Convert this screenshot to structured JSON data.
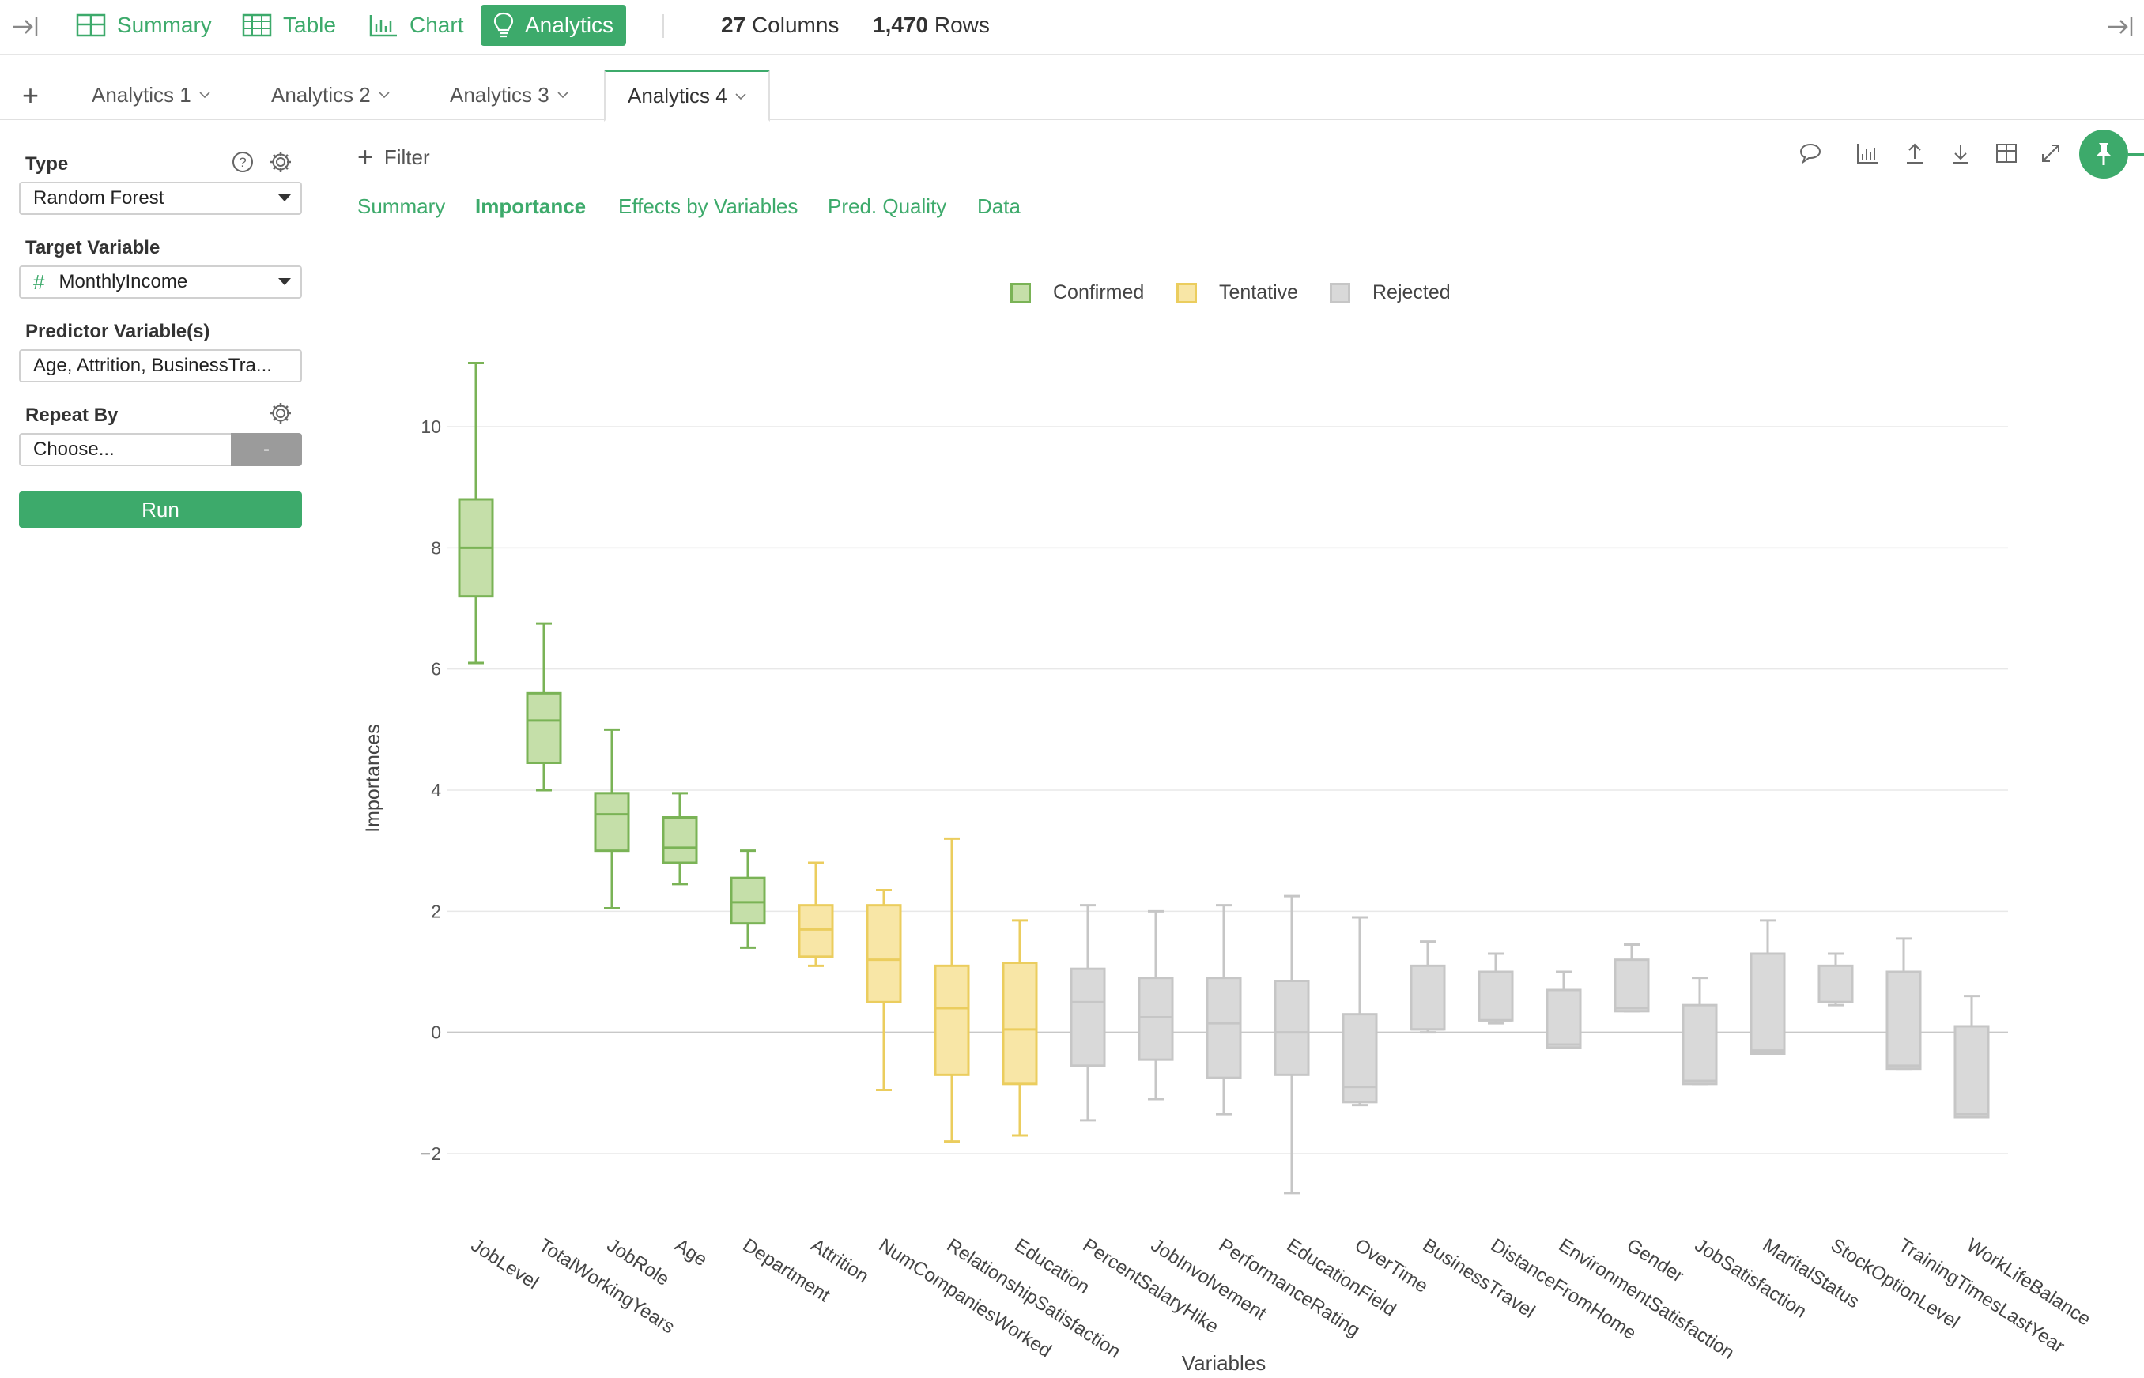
{
  "toolbar": {
    "nav": [
      {
        "label": "Summary",
        "icon": "summary-table-icon"
      },
      {
        "label": "Table",
        "icon": "table-icon"
      },
      {
        "label": "Chart",
        "icon": "bar-chart-icon"
      },
      {
        "label": "Analytics",
        "icon": "lightbulb-icon",
        "active": true
      }
    ],
    "columns_count": "27",
    "columns_label": "Columns",
    "rows_count": "1,470",
    "rows_label": "Rows"
  },
  "tabs": {
    "add_label": "+",
    "items": [
      {
        "label": "Analytics 1"
      },
      {
        "label": "Analytics 2"
      },
      {
        "label": "Analytics 3"
      },
      {
        "label": "Analytics 4",
        "active": true
      }
    ]
  },
  "panel": {
    "type_label": "Type",
    "type_value": "Random Forest",
    "target_label": "Target Variable",
    "target_hash": "#",
    "target_value": "MonthlyIncome",
    "predictor_label": "Predictor Variable(s)",
    "predictor_value": "Age, Attrition, BusinessTra...",
    "repeat_label": "Repeat By",
    "repeat_placeholder": "Choose...",
    "repeat_dash": "-",
    "run_label": "Run"
  },
  "main": {
    "filter_label": "Filter",
    "subtabs": [
      {
        "label": "Summary"
      },
      {
        "label": "Importance",
        "active": true
      },
      {
        "label": "Effects by Variables"
      },
      {
        "label": "Pred. Quality"
      },
      {
        "label": "Data"
      }
    ],
    "tools": [
      "comment-icon",
      "chart-type-icon",
      "upload-icon",
      "download-icon",
      "grid-icon",
      "expand-icon"
    ]
  },
  "colors": {
    "accent": "#3daa6b",
    "confirmed_fill": "#c5dfa9",
    "confirmed_stroke": "#7ab356",
    "tentative_fill": "#f8e6a6",
    "tentative_stroke": "#ebcd5e",
    "rejected_fill": "#d9d9d9",
    "rejected_stroke": "#c6c6c6"
  },
  "chart_data": {
    "type": "box",
    "xlabel": "Variables",
    "ylabel": "Importances",
    "ylim": [
      -3,
      11.5
    ],
    "yticks": [
      -2,
      0,
      2,
      4,
      6,
      8,
      10
    ],
    "legend": [
      "Confirmed",
      "Tentative",
      "Rejected"
    ],
    "legend_position": "top-center",
    "grid": true,
    "boxes": [
      {
        "name": "JobLevel",
        "group": "Confirmed",
        "min": 6.1,
        "q1": 7.2,
        "median": 8.0,
        "q3": 8.8,
        "max": 11.05
      },
      {
        "name": "TotalWorkingYears",
        "group": "Confirmed",
        "min": 4.0,
        "q1": 4.45,
        "median": 5.15,
        "q3": 5.6,
        "max": 6.75
      },
      {
        "name": "JobRole",
        "group": "Confirmed",
        "min": 2.05,
        "q1": 3.0,
        "median": 3.6,
        "q3": 3.95,
        "max": 5.0
      },
      {
        "name": "Age",
        "group": "Confirmed",
        "min": 2.45,
        "q1": 2.8,
        "median": 3.05,
        "q3": 3.55,
        "max": 3.95
      },
      {
        "name": "Department",
        "group": "Confirmed",
        "min": 1.4,
        "q1": 1.8,
        "median": 2.15,
        "q3": 2.55,
        "max": 3.0
      },
      {
        "name": "Attrition",
        "group": "Tentative",
        "min": 1.1,
        "q1": 1.25,
        "median": 1.7,
        "q3": 2.1,
        "max": 2.8
      },
      {
        "name": "NumCompaniesWorked",
        "group": "Tentative",
        "min": -0.95,
        "q1": 0.5,
        "median": 1.2,
        "q3": 2.1,
        "max": 2.35
      },
      {
        "name": "RelationshipSatisfaction",
        "group": "Tentative",
        "min": -1.8,
        "q1": -0.7,
        "median": 0.4,
        "q3": 1.1,
        "max": 3.2
      },
      {
        "name": "Education",
        "group": "Tentative",
        "min": -1.7,
        "q1": -0.85,
        "median": 0.05,
        "q3": 1.15,
        "max": 1.85
      },
      {
        "name": "PercentSalaryHike",
        "group": "Rejected",
        "min": -1.45,
        "q1": -0.55,
        "median": 0.5,
        "q3": 1.05,
        "max": 2.1
      },
      {
        "name": "JobInvolvement",
        "group": "Rejected",
        "min": -1.1,
        "q1": -0.45,
        "median": 0.25,
        "q3": 0.9,
        "max": 2.0
      },
      {
        "name": "PerformanceRating",
        "group": "Rejected",
        "min": -1.35,
        "q1": -0.75,
        "median": 0.15,
        "q3": 0.9,
        "max": 2.1
      },
      {
        "name": "EducationField",
        "group": "Rejected",
        "min": -2.65,
        "q1": -0.7,
        "median": 0.0,
        "q3": 0.85,
        "max": 2.25
      },
      {
        "name": "OverTime",
        "group": "Rejected",
        "min": -1.2,
        "q1": -1.15,
        "median": -0.9,
        "q3": 0.3,
        "max": 1.9
      },
      {
        "name": "BusinessTravel",
        "group": "Rejected",
        "min": 0.0,
        "q1": 0.05,
        "median": 0.05,
        "q3": 1.1,
        "max": 1.5
      },
      {
        "name": "DistanceFromHome",
        "group": "Rejected",
        "min": 0.15,
        "q1": 0.2,
        "median": 0.2,
        "q3": 1.0,
        "max": 1.3
      },
      {
        "name": "EnvironmentSatisfaction",
        "group": "Rejected",
        "min": -0.25,
        "q1": -0.25,
        "median": -0.2,
        "q3": 0.7,
        "max": 1.0
      },
      {
        "name": "Gender",
        "group": "Rejected",
        "min": 0.35,
        "q1": 0.35,
        "median": 0.4,
        "q3": 1.2,
        "max": 1.45
      },
      {
        "name": "JobSatisfaction",
        "group": "Rejected",
        "min": -0.85,
        "q1": -0.85,
        "median": -0.8,
        "q3": 0.45,
        "max": 0.9
      },
      {
        "name": "MaritalStatus",
        "group": "Rejected",
        "min": -0.35,
        "q1": -0.35,
        "median": -0.3,
        "q3": 1.3,
        "max": 1.85
      },
      {
        "name": "StockOptionLevel",
        "group": "Rejected",
        "min": 0.45,
        "q1": 0.5,
        "median": 0.5,
        "q3": 1.1,
        "max": 1.3
      },
      {
        "name": "TrainingTimesLastYear",
        "group": "Rejected",
        "min": -0.6,
        "q1": -0.6,
        "median": -0.55,
        "q3": 1.0,
        "max": 1.55
      },
      {
        "name": "WorkLifeBalance",
        "group": "Rejected",
        "min": -1.4,
        "q1": -1.4,
        "median": -1.35,
        "q3": 0.1,
        "max": 0.6
      }
    ]
  }
}
